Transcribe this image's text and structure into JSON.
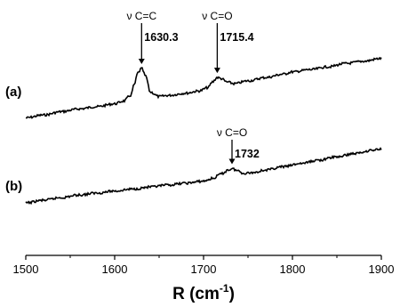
{
  "chart_data": {
    "type": "line",
    "xlabel": "R (cm",
    "xlabel_sup": "-1",
    "xlabel_close": ")",
    "ylabel": "",
    "xlim": [
      1500,
      1900
    ],
    "xticks": [
      "1500",
      "1600",
      "1700",
      "1800",
      "1900"
    ],
    "y_axis_shown": false,
    "grid": false,
    "series": [
      {
        "name": "(a)",
        "x": [
          1500,
          1520,
          1540,
          1560,
          1580,
          1600,
          1610,
          1618,
          1622,
          1626,
          1630.3,
          1635,
          1640,
          1650,
          1660,
          1680,
          1695,
          1705,
          1710,
          1715.4,
          1720,
          1726,
          1735,
          1750,
          1770,
          1790,
          1800,
          1820,
          1840,
          1860,
          1880,
          1900
        ],
        "y": [
          0.12,
          0.17,
          0.23,
          0.28,
          0.32,
          0.37,
          0.42,
          0.52,
          0.71,
          0.92,
          1.0,
          0.86,
          0.58,
          0.5,
          0.52,
          0.56,
          0.6,
          0.66,
          0.76,
          0.84,
          0.82,
          0.76,
          0.73,
          0.78,
          0.84,
          0.9,
          0.94,
          0.98,
          1.03,
          1.09,
          1.13,
          1.18
        ]
      },
      {
        "name": "(b)",
        "x": [
          1500,
          1520,
          1540,
          1560,
          1580,
          1600,
          1620,
          1640,
          1660,
          1680,
          1700,
          1710,
          1720,
          1728,
          1732,
          1738,
          1745,
          1755,
          1770,
          1790,
          1810,
          1830,
          1850,
          1870,
          1890,
          1900
        ],
        "y": [
          0.0,
          0.04,
          0.08,
          0.12,
          0.15,
          0.18,
          0.21,
          0.24,
          0.27,
          0.3,
          0.33,
          0.37,
          0.44,
          0.5,
          0.52,
          0.49,
          0.45,
          0.46,
          0.5,
          0.55,
          0.6,
          0.65,
          0.7,
          0.75,
          0.8,
          0.82
        ]
      }
    ],
    "annotations": [
      {
        "series": "(a)",
        "mode": "ν C=C",
        "value": "1630.3",
        "x": 1630.3
      },
      {
        "series": "(a)",
        "mode": "ν C=O",
        "value": "1715.4",
        "x": 1715.4
      },
      {
        "series": "(b)",
        "mode": "ν C=O",
        "value": "1732",
        "x": 1732
      }
    ]
  }
}
